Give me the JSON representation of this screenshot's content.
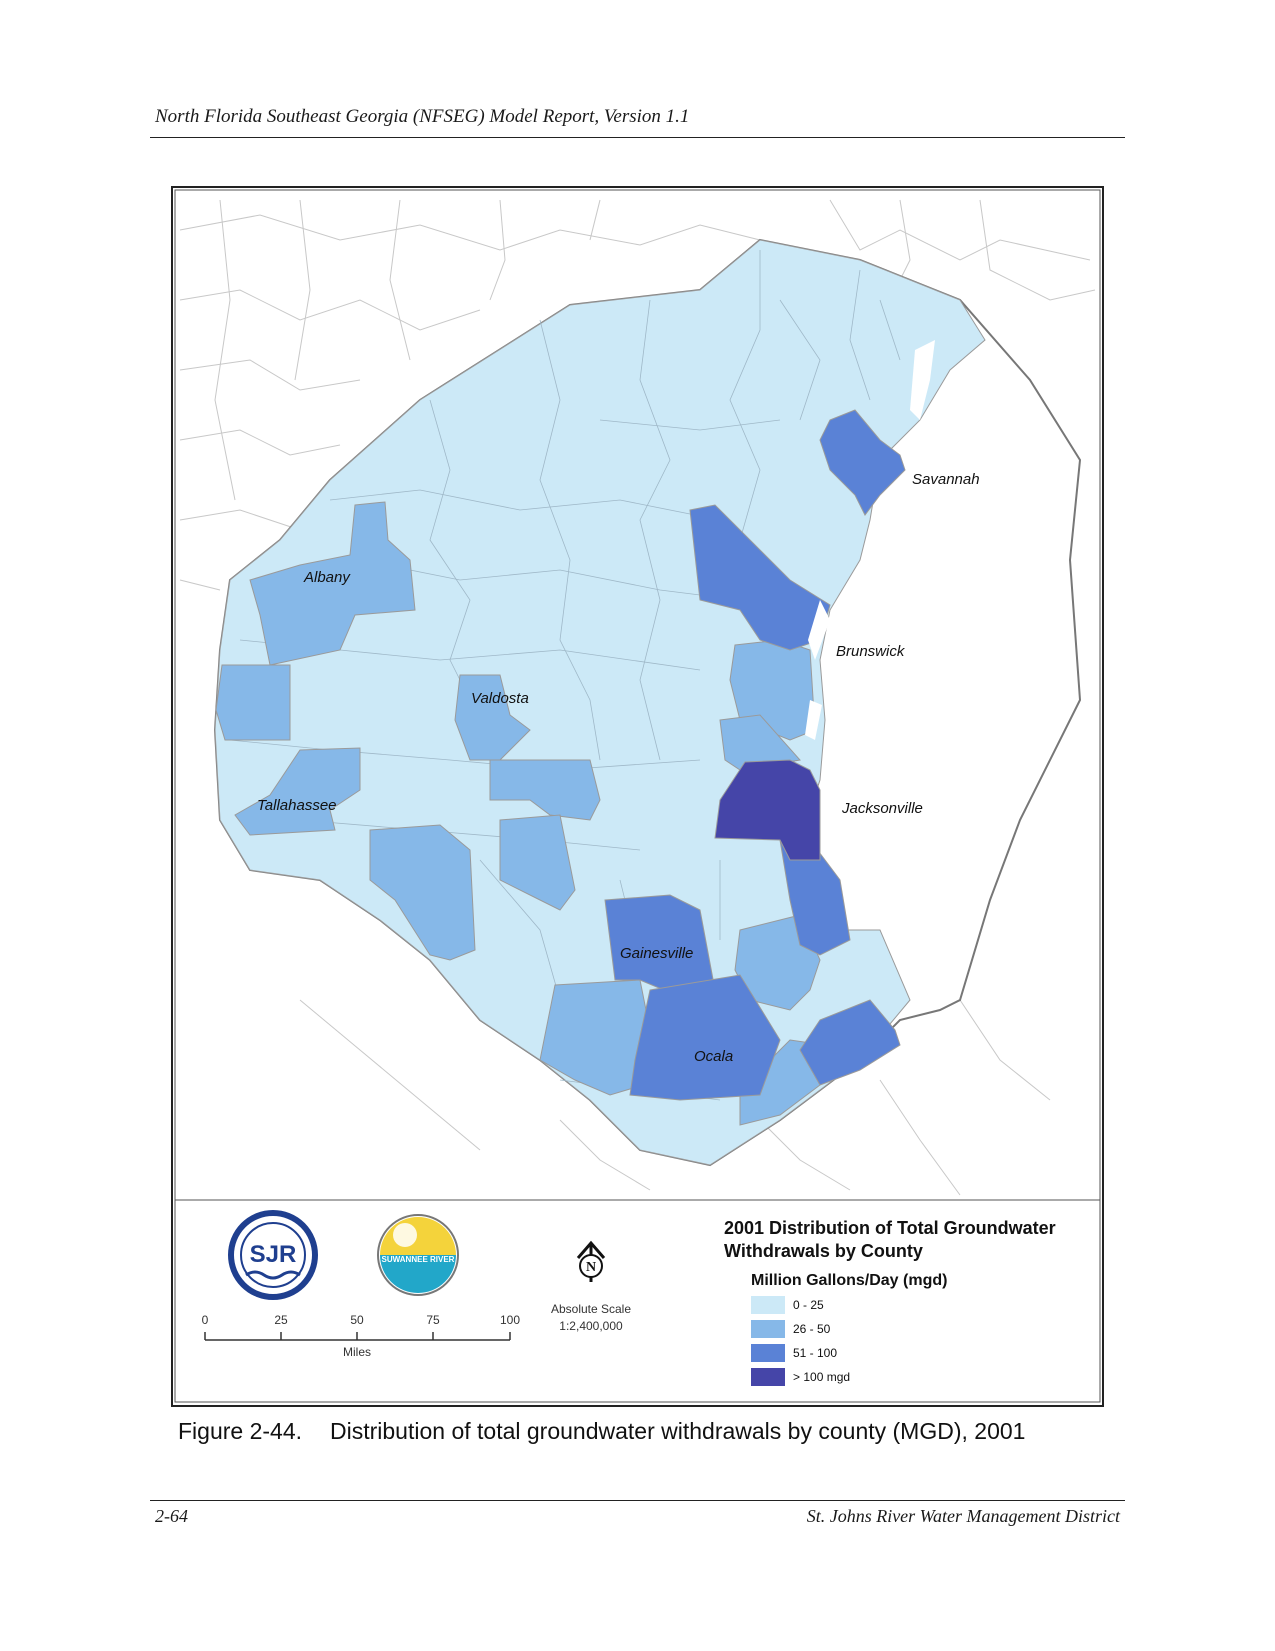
{
  "header": {
    "running_title": "North Florida Southeast Georgia (NFSEG) Model Report, Version 1.1"
  },
  "map": {
    "cities": [
      {
        "name": "Savannah"
      },
      {
        "name": "Albany"
      },
      {
        "name": "Brunswick"
      },
      {
        "name": "Valdosta"
      },
      {
        "name": "Tallahassee"
      },
      {
        "name": "Jacksonville"
      },
      {
        "name": "Gainesville"
      },
      {
        "name": "Ocala"
      }
    ],
    "colors": {
      "c0_25": "#cce9f7",
      "c26_50": "#86b8e8",
      "c51_100": "#5a82d6",
      "c100plus": "#4545a8",
      "border": "#9a9a9a"
    }
  },
  "legend": {
    "title_line1": "2001 Distribution of Total Groundwater",
    "title_line2": "Withdrawals by County",
    "subtitle": "Million Gallons/Day (mgd)",
    "items": [
      {
        "label": "0 - 25",
        "color": "#cce9f7"
      },
      {
        "label": "26 - 50",
        "color": "#86b8e8"
      },
      {
        "label": "51 - 100",
        "color": "#5a82d6"
      },
      {
        "label": "> 100 mgd",
        "color": "#4545a8"
      }
    ]
  },
  "scale_bar": {
    "ticks": [
      "0",
      "25",
      "50",
      "75",
      "100"
    ],
    "unit": "Miles"
  },
  "absolute_scale": {
    "label": "Absolute Scale",
    "value": "1:2,400,000"
  },
  "north_arrow": {
    "letter": "N"
  },
  "logos": [
    {
      "name": "sjr-logo",
      "text": "SJR"
    },
    {
      "name": "srwmd-logo",
      "text": "SUWANNEE RIVER"
    }
  ],
  "caption": {
    "number": "Figure 2-44.",
    "text": "Distribution of total groundwater withdrawals by county (MGD), 2001"
  },
  "footer": {
    "page": "2-64",
    "org": "St. Johns River Water Management District"
  }
}
